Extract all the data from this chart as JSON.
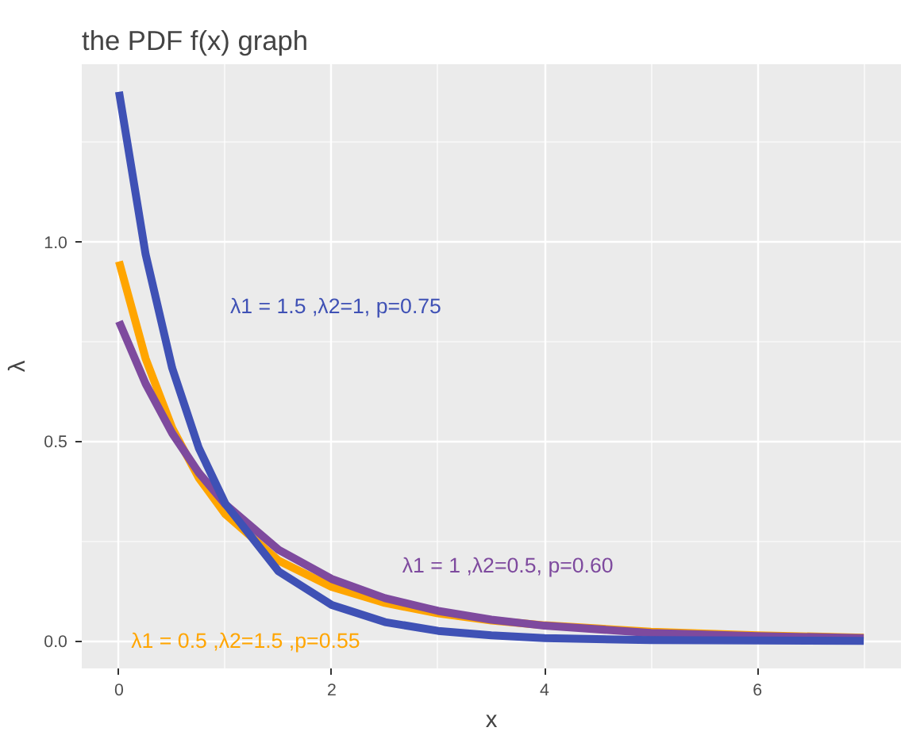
{
  "chart_data": {
    "type": "line",
    "title": "the PDF f(x) graph",
    "xlabel": "x",
    "ylabel": "λ",
    "x": [
      0,
      0.25,
      0.5,
      0.75,
      1,
      1.5,
      2,
      2.5,
      3,
      3.5,
      4,
      5,
      6,
      7
    ],
    "series": [
      {
        "color": "#ffa500",
        "values": [
          0.95,
          0.707,
          0.533,
          0.408,
          0.317,
          0.201,
          0.135,
          0.095,
          0.069,
          0.051,
          0.039,
          0.023,
          0.014,
          0.008
        ]
      },
      {
        "color": "#7e4a9e",
        "values": [
          0.8,
          0.644,
          0.52,
          0.421,
          0.342,
          0.228,
          0.155,
          0.107,
          0.075,
          0.053,
          0.038,
          0.02,
          0.012,
          0.007
        ]
      },
      {
        "color": "#3f51b5",
        "values": [
          1.375,
          0.968,
          0.683,
          0.483,
          0.343,
          0.174,
          0.09,
          0.047,
          0.025,
          0.014,
          0.007,
          0.002,
          0.001,
          0.0
        ]
      }
    ],
    "annotations": [
      "λ1 = 0.5 ,λ2=1.5 ,p=0.55",
      "λ1 = 1 ,λ2=0.5, p=0.60",
      "λ1 = 1.5 ,λ2=1, p=0.75"
    ],
    "xlim": [
      -0.35,
      7.35
    ],
    "ylim": [
      -0.069,
      1.444
    ],
    "xticks": [
      0,
      2,
      4,
      6
    ],
    "yticks": [
      {
        "value": 0,
        "label": "0.0"
      },
      {
        "value": 0.5,
        "label": "0.5"
      },
      {
        "value": 1.0,
        "label": "1.0"
      }
    ],
    "grid": true,
    "marker": "none",
    "line_style": "solid"
  }
}
